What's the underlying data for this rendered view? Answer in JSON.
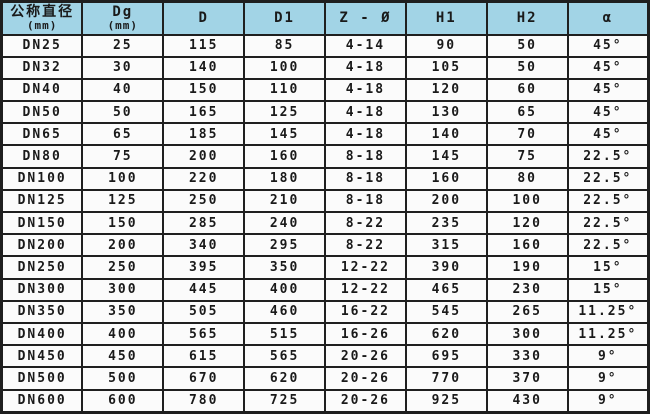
{
  "chart_data": {
    "type": "table",
    "columns": [
      {
        "key": "nominal-diameter",
        "label": "公称直径",
        "unit": "(mm)"
      },
      {
        "key": "dg",
        "label": "Dg",
        "unit": "(mm)"
      },
      {
        "key": "d",
        "label": "D",
        "unit": ""
      },
      {
        "key": "d1",
        "label": "D1",
        "unit": ""
      },
      {
        "key": "z-phi",
        "label": "Z - Ø",
        "unit": ""
      },
      {
        "key": "h1",
        "label": "H1",
        "unit": ""
      },
      {
        "key": "h2",
        "label": "H2",
        "unit": ""
      },
      {
        "key": "alpha",
        "label": "α",
        "unit": ""
      }
    ],
    "rows": [
      [
        "DN25",
        "25",
        "115",
        "85",
        "4-14",
        "90",
        "50",
        "45°"
      ],
      [
        "DN32",
        "30",
        "140",
        "100",
        "4-18",
        "105",
        "50",
        "45°"
      ],
      [
        "DN40",
        "40",
        "150",
        "110",
        "4-18",
        "120",
        "60",
        "45°"
      ],
      [
        "DN50",
        "50",
        "165",
        "125",
        "4-18",
        "130",
        "65",
        "45°"
      ],
      [
        "DN65",
        "65",
        "185",
        "145",
        "4-18",
        "140",
        "70",
        "45°"
      ],
      [
        "DN80",
        "75",
        "200",
        "160",
        "8-18",
        "145",
        "75",
        "22.5°"
      ],
      [
        "DN100",
        "100",
        "220",
        "180",
        "8-18",
        "160",
        "80",
        "22.5°"
      ],
      [
        "DN125",
        "125",
        "250",
        "210",
        "8-18",
        "200",
        "100",
        "22.5°"
      ],
      [
        "DN150",
        "150",
        "285",
        "240",
        "8-22",
        "235",
        "120",
        "22.5°"
      ],
      [
        "DN200",
        "200",
        "340",
        "295",
        "8-22",
        "315",
        "160",
        "22.5°"
      ],
      [
        "DN250",
        "250",
        "395",
        "350",
        "12-22",
        "390",
        "190",
        "15°"
      ],
      [
        "DN300",
        "300",
        "445",
        "400",
        "12-22",
        "465",
        "230",
        "15°"
      ],
      [
        "DN350",
        "350",
        "505",
        "460",
        "16-22",
        "545",
        "265",
        "11.25°"
      ],
      [
        "DN400",
        "400",
        "565",
        "515",
        "16-26",
        "620",
        "300",
        "11.25°"
      ],
      [
        "DN450",
        "450",
        "615",
        "565",
        "20-26",
        "695",
        "330",
        "9°"
      ],
      [
        "DN500",
        "500",
        "670",
        "620",
        "20-26",
        "770",
        "370",
        "9°"
      ],
      [
        "DN600",
        "600",
        "780",
        "725",
        "20-26",
        "925",
        "430",
        "9°"
      ]
    ]
  },
  "colors": {
    "header_bg": "#a2d4e6",
    "border": "#1f1f1f",
    "cell_bg": "#fbfbfb",
    "text": "#1a1a1a"
  }
}
